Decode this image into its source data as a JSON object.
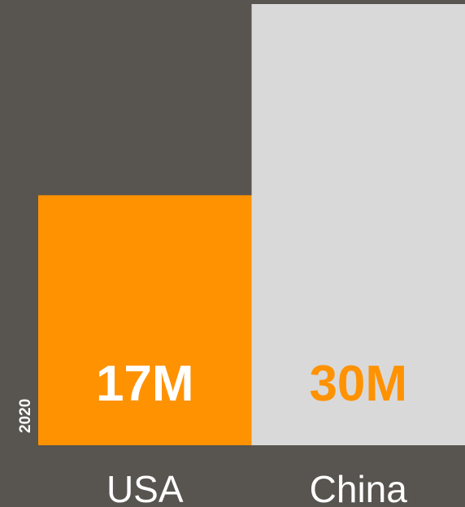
{
  "chart_data": {
    "type": "bar",
    "categories": [
      "USA",
      "China"
    ],
    "values": [
      17,
      30
    ],
    "value_labels": [
      "17M",
      "30M"
    ],
    "side_label": "2020",
    "ylim": [
      0,
      30
    ],
    "grid": false,
    "legend": "none",
    "colors": {
      "background": "#58544f",
      "bars": [
        "#ff9200",
        "#d9d9d9"
      ],
      "value_label_colors": [
        "#ffffff",
        "#ff9200"
      ],
      "category_label": "#ffffff"
    }
  }
}
